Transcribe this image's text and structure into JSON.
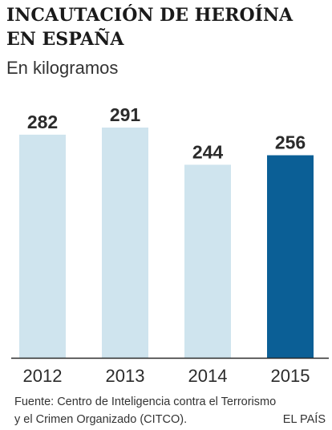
{
  "title": "INCAUTACIÓN DE HEROÍNA EN ESPAÑA",
  "subtitle": "En kilogramos",
  "source_line1": "Fuente: Centro de Inteligencia contra el Terrorismo",
  "source_line2": "y el Crimen Organizado (CITCO).",
  "credit": "EL PAÍS",
  "chart_data": {
    "type": "bar",
    "categories": [
      "2012",
      "2013",
      "2014",
      "2015"
    ],
    "values": [
      282,
      291,
      244,
      256
    ],
    "title": "INCAUTACIÓN DE HEROÍNA EN ESPAÑA",
    "xlabel": "",
    "ylabel": "En kilogramos",
    "ylim": [
      0,
      291
    ],
    "grid": false,
    "legend": "none",
    "colors": [
      "#cfe4ee",
      "#cfe4ee",
      "#cfe4ee",
      "#0b5f96"
    ],
    "axis_color": "#2a2a2a"
  }
}
